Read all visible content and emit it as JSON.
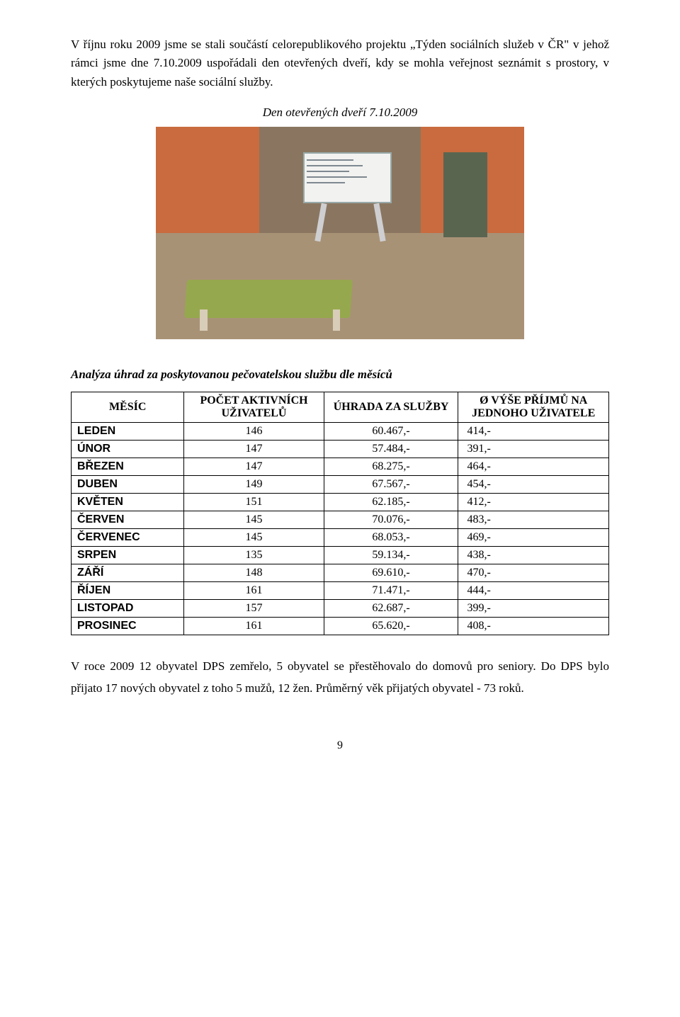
{
  "para1": "V říjnu roku 2009 jsme se stali součástí celorepublikového projektu „Týden sociálních služeb v ČR\" v jehož rámci jsme dne 7.10.2009 uspořádali den otevřených dveří, kdy se mohla veřejnost seznámit s prostory, v kterých poskytujeme naše sociální služby.",
  "caption": "Den otevřených dveří 7.10.2009",
  "analysis_title": "Analýza úhrad za poskytovanou pečovatelskou službu dle měsíců",
  "table": {
    "headers": {
      "h1": "MĚSÍC",
      "h2": "POČET AKTIVNÍCH UŽIVATELŮ",
      "h3": "ÚHRADA ZA SLUŽBY",
      "h4": "Ø VÝŠE PŘÍJMŮ NA JEDNOHO UŽIVATELE"
    },
    "rows": [
      {
        "m": "LEDEN",
        "c": "146",
        "u": "60.467,-",
        "a": "414,-"
      },
      {
        "m": "ÚNOR",
        "c": "147",
        "u": "57.484,-",
        "a": "391,-"
      },
      {
        "m": "BŘEZEN",
        "c": "147",
        "u": "68.275,-",
        "a": "464,-"
      },
      {
        "m": "DUBEN",
        "c": "149",
        "u": "67.567,-",
        "a": "454,-"
      },
      {
        "m": "KVĚTEN",
        "c": "151",
        "u": "62.185,-",
        "a": "412,-"
      },
      {
        "m": "ČERVEN",
        "c": "145",
        "u": "70.076,-",
        "a": "483,-"
      },
      {
        "m": "ČERVENEC",
        "c": "145",
        "u": "68.053,-",
        "a": "469,-"
      },
      {
        "m": "SRPEN",
        "c": "135",
        "u": "59.134,-",
        "a": "438,-"
      },
      {
        "m": "ZÁŘÍ",
        "c": "148",
        "u": "69.610,-",
        "a": "470,-"
      },
      {
        "m": "ŘÍJEN",
        "c": "161",
        "u": "71.471,-",
        "a": "444,-"
      },
      {
        "m": "LISTOPAD",
        "c": "157",
        "u": "62.687,-",
        "a": "399,-"
      },
      {
        "m": "PROSINEC",
        "c": "161",
        "u": "65.620,-",
        "a": "408,-"
      }
    ]
  },
  "para2": "V roce 2009 12 obyvatel DPS zemřelo, 5 obyvatel se přestěhovalo do domovů pro seniory. Do DPS bylo  přijato 17 nových obyvatel z toho 5 mužů, 12 žen. Průměrný věk přijatých obyvatel - 73 roků.",
  "page_num": "9"
}
